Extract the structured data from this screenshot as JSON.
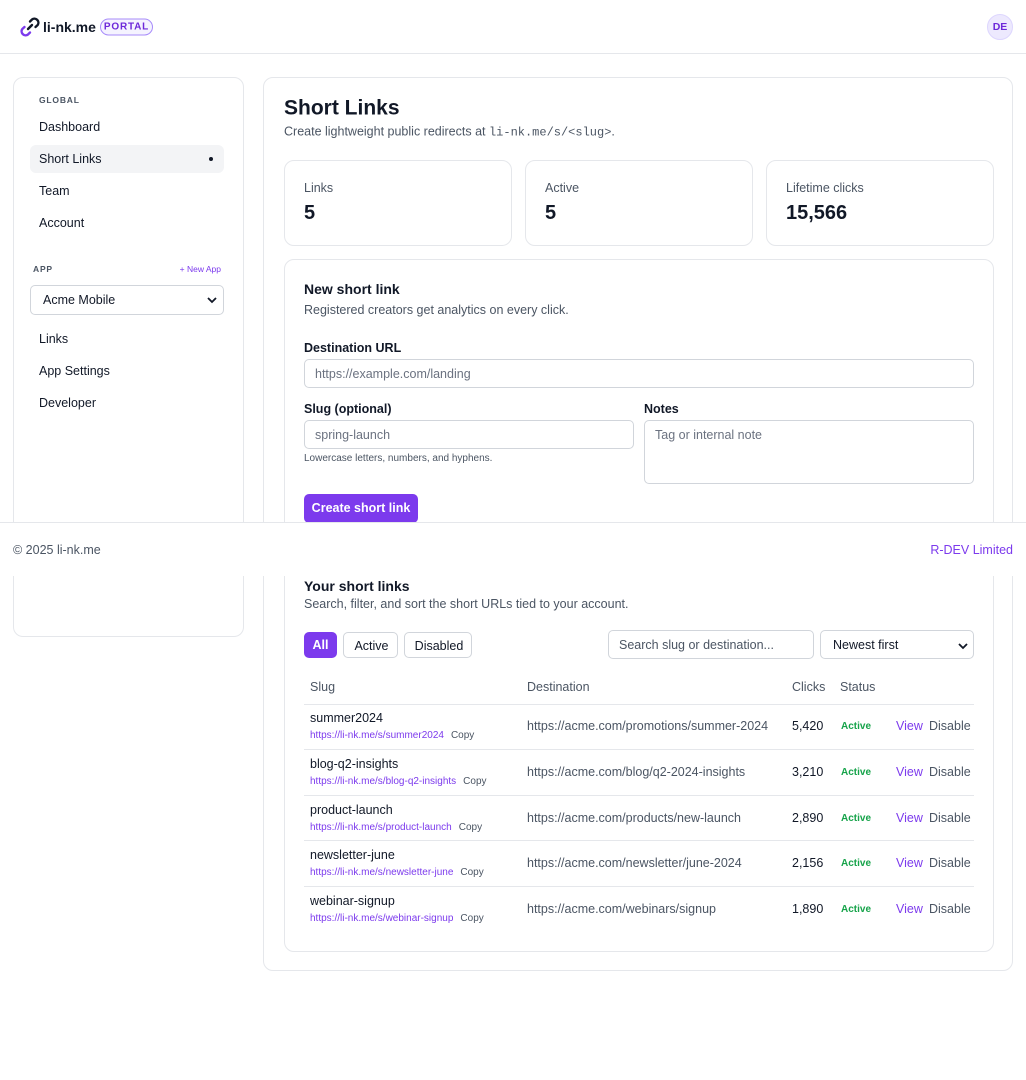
{
  "header": {
    "brand": "li-nk.me",
    "badge": "PORTAL",
    "avatar": "DE"
  },
  "sidebar": {
    "global_label": "GLOBAL",
    "global_items": [
      "Dashboard",
      "Short Links",
      "Team",
      "Account"
    ],
    "app_label": "APP",
    "new_app": "+ New App",
    "app_select": "Acme Mobile",
    "app_items": [
      "Links",
      "App Settings",
      "Developer"
    ]
  },
  "main": {
    "title": "Short Links",
    "subtitle_prefix": "Create lightweight public redirects at ",
    "subtitle_code": "li-nk.me/s/<slug>",
    "subtitle_suffix": ".",
    "stats": [
      {
        "label": "Links",
        "value": "5"
      },
      {
        "label": "Active",
        "value": "5"
      },
      {
        "label": "Lifetime clicks",
        "value": "15,566"
      }
    ],
    "form": {
      "title": "New short link",
      "subtitle": "Registered creators get analytics on every click.",
      "destination_label": "Destination URL",
      "destination_placeholder": "https://example.com/landing",
      "slug_label": "Slug (optional)",
      "slug_placeholder": "spring-launch",
      "slug_hint": "Lowercase letters, numbers, and hyphens.",
      "notes_label": "Notes",
      "notes_placeholder": "Tag or internal note",
      "button": "Create short link"
    },
    "list": {
      "title": "Your short links",
      "subtitle": "Search, filter, and sort the short URLs tied to your account.",
      "filters": [
        "All",
        "Active",
        "Disabled"
      ],
      "search_placeholder": "Search slug or destination...",
      "sort": "Newest first",
      "columns": [
        "Slug",
        "Destination",
        "Clicks",
        "Status"
      ],
      "rows": [
        {
          "slug": "summer2024",
          "url": "https://li-nk.me/s/summer2024",
          "copy": "Copy",
          "destination": "https://acme.com/promotions/summer-2024",
          "clicks": "5,420",
          "status": "Active",
          "view": "View",
          "disable": "Disable"
        },
        {
          "slug": "blog-q2-insights",
          "url": "https://li-nk.me/s/blog-q2-insights",
          "copy": "Copy",
          "destination": "https://acme.com/blog/q2-2024-insights",
          "clicks": "3,210",
          "status": "Active",
          "view": "View",
          "disable": "Disable"
        },
        {
          "slug": "product-launch",
          "url": "https://li-nk.me/s/product-launch",
          "copy": "Copy",
          "destination": "https://acme.com/products/new-launch",
          "clicks": "2,890",
          "status": "Active",
          "view": "View",
          "disable": "Disable"
        },
        {
          "slug": "newsletter-june",
          "url": "https://li-nk.me/s/newsletter-june",
          "copy": "Copy",
          "destination": "https://acme.com/newsletter/june-2024",
          "clicks": "2,156",
          "status": "Active",
          "view": "View",
          "disable": "Disable"
        },
        {
          "slug": "webinar-signup",
          "url": "https://li-nk.me/s/webinar-signup",
          "copy": "Copy",
          "destination": "https://acme.com/webinars/signup",
          "clicks": "1,890",
          "status": "Active",
          "view": "View",
          "disable": "Disable"
        }
      ]
    }
  },
  "footer": {
    "copyright": "© 2025 li-nk.me",
    "company": "R-DEV Limited"
  }
}
